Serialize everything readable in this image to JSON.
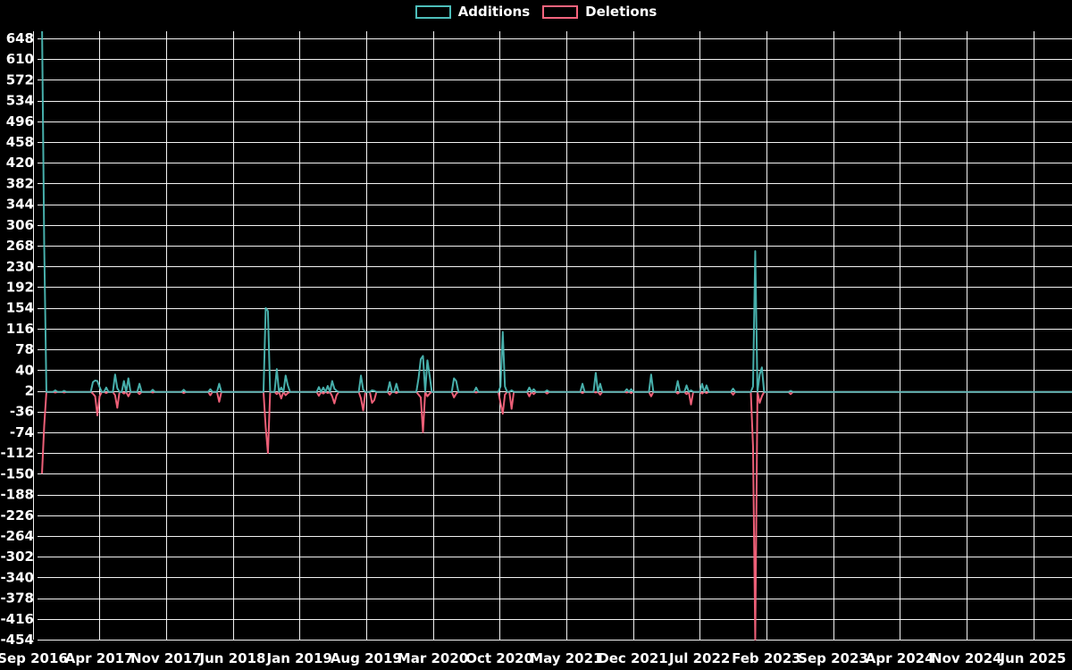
{
  "page": {
    "background_color": "#000000",
    "text_color": "#ffffff",
    "grid_color": "#ffffff"
  },
  "legend": {
    "items": [
      {
        "label": "Additions",
        "color": "#4dbeba"
      },
      {
        "label": "Deletions",
        "color": "#f9647d"
      }
    ]
  },
  "chart_data": {
    "type": "line",
    "title": "",
    "xlabel": "",
    "ylabel": "",
    "grid": true,
    "legend_position": "top-center",
    "ylim": [
      -454,
      648
    ],
    "y_ticks": [
      648,
      610,
      572,
      534,
      496,
      458,
      420,
      382,
      344,
      306,
      268,
      230,
      192,
      154,
      116,
      78,
      40,
      2,
      -36,
      -74,
      -112,
      -150,
      -188,
      -226,
      -264,
      -302,
      -340,
      -378,
      -416,
      -454
    ],
    "x_tick_labels": [
      "Sep 2016",
      "Apr 2017",
      "Nov 2017",
      "Jun 2018",
      "Jan 2019",
      "Aug 2019",
      "Mar 2020",
      "Oct 2020",
      "May 2021",
      "Dec 2021",
      "Jul 2022",
      "Feb 2023",
      "Sep 2023",
      "Apr 2024",
      "Nov 2024",
      "Jun 2025"
    ],
    "x_unit": "week",
    "weeks_total": 466,
    "baseline": {
      "additions": 0,
      "deletions": 0
    },
    "series": [
      {
        "name": "Additions",
        "color": "#4dbeba"
      },
      {
        "name": "Deletions",
        "color": "#f9647d"
      }
    ],
    "note": "spikes = [week_index_from_Sep2016, additions, deletions]; unlisted weeks sit at baseline; first additions spike is clipped at the top of the plot (>648)",
    "spikes": [
      [
        0,
        680,
        -150
      ],
      [
        1,
        270,
        -62
      ],
      [
        6,
        3,
        -1
      ],
      [
        10,
        2,
        -1
      ],
      [
        23,
        18,
        -3
      ],
      [
        24,
        21,
        -8
      ],
      [
        25,
        20,
        -43
      ],
      [
        26,
        9,
        -8
      ],
      [
        29,
        8,
        -2
      ],
      [
        33,
        32,
        -6
      ],
      [
        34,
        7,
        -29
      ],
      [
        37,
        20,
        -3
      ],
      [
        39,
        25,
        -8
      ],
      [
        44,
        15,
        -4
      ],
      [
        50,
        4,
        -1
      ],
      [
        64,
        4,
        -2
      ],
      [
        76,
        5,
        -6
      ],
      [
        80,
        15,
        -18
      ],
      [
        101,
        154,
        -65
      ],
      [
        102,
        148,
        -112
      ],
      [
        106,
        42,
        -4
      ],
      [
        108,
        8,
        -12
      ],
      [
        110,
        30,
        -6
      ],
      [
        111,
        12,
        -2
      ],
      [
        125,
        9,
        -7
      ],
      [
        127,
        8,
        -3
      ],
      [
        129,
        11,
        -2
      ],
      [
        131,
        20,
        -8
      ],
      [
        132,
        6,
        -21
      ],
      [
        133,
        2,
        -6
      ],
      [
        144,
        30,
        -12
      ],
      [
        145,
        4,
        -34
      ],
      [
        149,
        3,
        -20
      ],
      [
        150,
        2,
        -15
      ],
      [
        157,
        18,
        -5
      ],
      [
        160,
        15,
        -2
      ],
      [
        170,
        25,
        -5
      ],
      [
        171,
        60,
        -10
      ],
      [
        172,
        66,
        -74
      ],
      [
        174,
        58,
        -8
      ],
      [
        175,
        30,
        -3
      ],
      [
        186,
        25,
        -10
      ],
      [
        187,
        20,
        -3
      ],
      [
        196,
        8,
        -1
      ],
      [
        207,
        10,
        -20
      ],
      [
        208,
        110,
        -40
      ],
      [
        209,
        10,
        -5
      ],
      [
        212,
        3,
        -31
      ],
      [
        220,
        8,
        -8
      ],
      [
        222,
        5,
        -4
      ],
      [
        228,
        3,
        -3
      ],
      [
        244,
        15,
        -2
      ],
      [
        250,
        35,
        -1
      ],
      [
        252,
        15,
        -5
      ],
      [
        264,
        5,
        -1
      ],
      [
        266,
        5,
        -2
      ],
      [
        275,
        32,
        -8
      ],
      [
        287,
        20,
        -3
      ],
      [
        291,
        12,
        -4
      ],
      [
        293,
        3,
        -23
      ],
      [
        298,
        15,
        -3
      ],
      [
        300,
        12,
        -2
      ],
      [
        312,
        6,
        -5
      ],
      [
        321,
        10,
        -100
      ],
      [
        322,
        258,
        -454
      ],
      [
        324,
        32,
        -20
      ],
      [
        325,
        45,
        -8
      ],
      [
        338,
        2,
        -4
      ]
    ]
  }
}
